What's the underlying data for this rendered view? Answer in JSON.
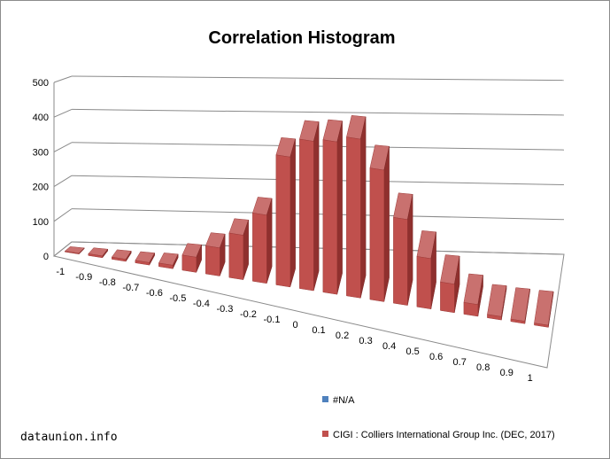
{
  "chart_data": {
    "type": "bar",
    "title": "Correlation Histogram",
    "categories": [
      "-1",
      "-0.9",
      "-0.8",
      "-0.7",
      "-0.6",
      "-0.5",
      "-0.4",
      "-0.3",
      "-0.2",
      "-0.1",
      "0",
      "0.1",
      "0.2",
      "0.3",
      "0.4",
      "0.5",
      "0.6",
      "0.7",
      "0.8",
      "0.9",
      "1"
    ],
    "series": [
      {
        "name": "#N/A",
        "color": "#4f81bd",
        "values": [
          0,
          0,
          0,
          0,
          0,
          0,
          0,
          0,
          0,
          0,
          0,
          0,
          0,
          0,
          0,
          0,
          0,
          0,
          0,
          0,
          0
        ]
      },
      {
        "name": "CIGI : Colliers International Group Inc. (DEC, 2017)",
        "color": "#c0504d",
        "values": [
          2,
          5,
          6,
          7,
          10,
          44,
          82,
          130,
          200,
          382,
          440,
          450,
          470,
          390,
          255,
          150,
          85,
          35,
          10,
          7,
          6
        ]
      }
    ],
    "ylim": [
      0,
      500
    ],
    "yticks": [
      0,
      100,
      200,
      300,
      400,
      500
    ],
    "grid": true,
    "legend_position": "bottom-right"
  },
  "watermark": "dataunion.info"
}
